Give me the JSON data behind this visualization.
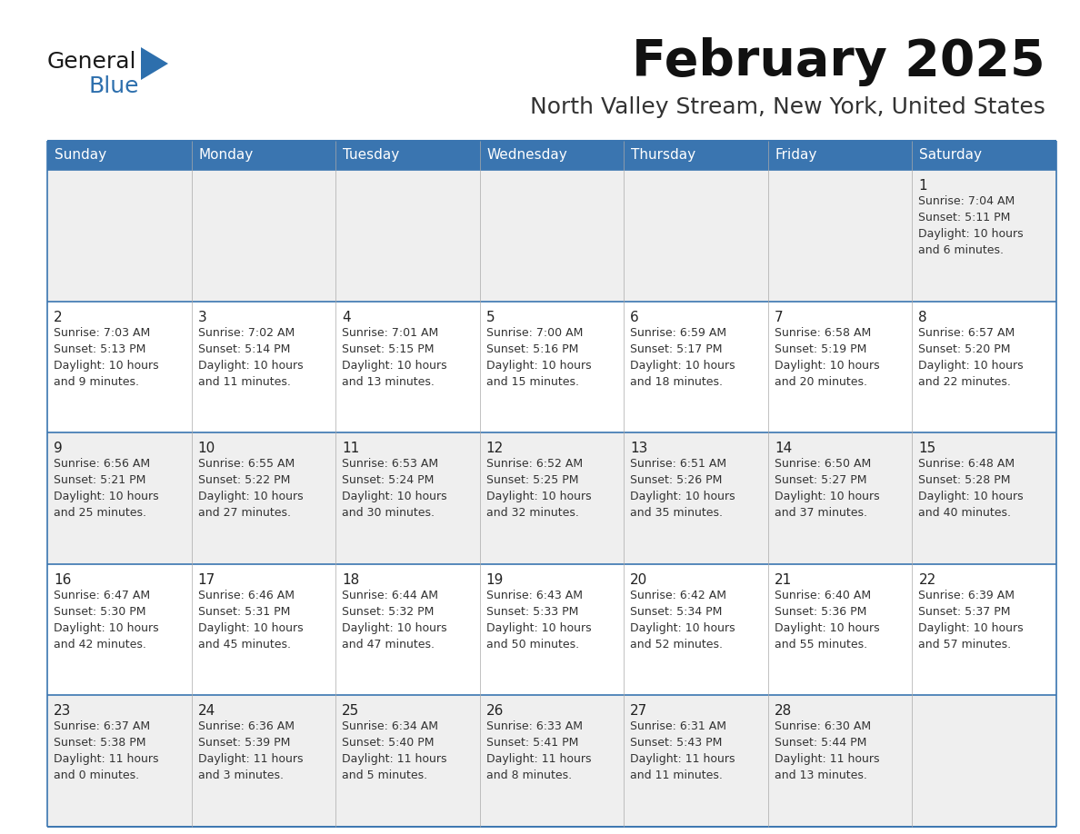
{
  "title": "February 2025",
  "subtitle": "North Valley Stream, New York, United States",
  "header_color": "#3a75b0",
  "header_text_color": "#ffffff",
  "cell_bg_even": "#efefef",
  "cell_bg_odd": "#ffffff",
  "border_color": "#3a75b0",
  "day_headers": [
    "Sunday",
    "Monday",
    "Tuesday",
    "Wednesday",
    "Thursday",
    "Friday",
    "Saturday"
  ],
  "title_color": "#111111",
  "subtitle_color": "#333333",
  "logo_general_color": "#1a1a1a",
  "logo_blue_color": "#2d6fad",
  "text_color": "#333333",
  "weeks": [
    [
      {
        "day": null,
        "sunrise": null,
        "sunset": null,
        "daylight": null
      },
      {
        "day": null,
        "sunrise": null,
        "sunset": null,
        "daylight": null
      },
      {
        "day": null,
        "sunrise": null,
        "sunset": null,
        "daylight": null
      },
      {
        "day": null,
        "sunrise": null,
        "sunset": null,
        "daylight": null
      },
      {
        "day": null,
        "sunrise": null,
        "sunset": null,
        "daylight": null
      },
      {
        "day": null,
        "sunrise": null,
        "sunset": null,
        "daylight": null
      },
      {
        "day": 1,
        "sunrise": "7:04 AM",
        "sunset": "5:11 PM",
        "daylight": "10 hours\nand 6 minutes."
      }
    ],
    [
      {
        "day": 2,
        "sunrise": "7:03 AM",
        "sunset": "5:13 PM",
        "daylight": "10 hours\nand 9 minutes."
      },
      {
        "day": 3,
        "sunrise": "7:02 AM",
        "sunset": "5:14 PM",
        "daylight": "10 hours\nand 11 minutes."
      },
      {
        "day": 4,
        "sunrise": "7:01 AM",
        "sunset": "5:15 PM",
        "daylight": "10 hours\nand 13 minutes."
      },
      {
        "day": 5,
        "sunrise": "7:00 AM",
        "sunset": "5:16 PM",
        "daylight": "10 hours\nand 15 minutes."
      },
      {
        "day": 6,
        "sunrise": "6:59 AM",
        "sunset": "5:17 PM",
        "daylight": "10 hours\nand 18 minutes."
      },
      {
        "day": 7,
        "sunrise": "6:58 AM",
        "sunset": "5:19 PM",
        "daylight": "10 hours\nand 20 minutes."
      },
      {
        "day": 8,
        "sunrise": "6:57 AM",
        "sunset": "5:20 PM",
        "daylight": "10 hours\nand 22 minutes."
      }
    ],
    [
      {
        "day": 9,
        "sunrise": "6:56 AM",
        "sunset": "5:21 PM",
        "daylight": "10 hours\nand 25 minutes."
      },
      {
        "day": 10,
        "sunrise": "6:55 AM",
        "sunset": "5:22 PM",
        "daylight": "10 hours\nand 27 minutes."
      },
      {
        "day": 11,
        "sunrise": "6:53 AM",
        "sunset": "5:24 PM",
        "daylight": "10 hours\nand 30 minutes."
      },
      {
        "day": 12,
        "sunrise": "6:52 AM",
        "sunset": "5:25 PM",
        "daylight": "10 hours\nand 32 minutes."
      },
      {
        "day": 13,
        "sunrise": "6:51 AM",
        "sunset": "5:26 PM",
        "daylight": "10 hours\nand 35 minutes."
      },
      {
        "day": 14,
        "sunrise": "6:50 AM",
        "sunset": "5:27 PM",
        "daylight": "10 hours\nand 37 minutes."
      },
      {
        "day": 15,
        "sunrise": "6:48 AM",
        "sunset": "5:28 PM",
        "daylight": "10 hours\nand 40 minutes."
      }
    ],
    [
      {
        "day": 16,
        "sunrise": "6:47 AM",
        "sunset": "5:30 PM",
        "daylight": "10 hours\nand 42 minutes."
      },
      {
        "day": 17,
        "sunrise": "6:46 AM",
        "sunset": "5:31 PM",
        "daylight": "10 hours\nand 45 minutes."
      },
      {
        "day": 18,
        "sunrise": "6:44 AM",
        "sunset": "5:32 PM",
        "daylight": "10 hours\nand 47 minutes."
      },
      {
        "day": 19,
        "sunrise": "6:43 AM",
        "sunset": "5:33 PM",
        "daylight": "10 hours\nand 50 minutes."
      },
      {
        "day": 20,
        "sunrise": "6:42 AM",
        "sunset": "5:34 PM",
        "daylight": "10 hours\nand 52 minutes."
      },
      {
        "day": 21,
        "sunrise": "6:40 AM",
        "sunset": "5:36 PM",
        "daylight": "10 hours\nand 55 minutes."
      },
      {
        "day": 22,
        "sunrise": "6:39 AM",
        "sunset": "5:37 PM",
        "daylight": "10 hours\nand 57 minutes."
      }
    ],
    [
      {
        "day": 23,
        "sunrise": "6:37 AM",
        "sunset": "5:38 PM",
        "daylight": "11 hours\nand 0 minutes."
      },
      {
        "day": 24,
        "sunrise": "6:36 AM",
        "sunset": "5:39 PM",
        "daylight": "11 hours\nand 3 minutes."
      },
      {
        "day": 25,
        "sunrise": "6:34 AM",
        "sunset": "5:40 PM",
        "daylight": "11 hours\nand 5 minutes."
      },
      {
        "day": 26,
        "sunrise": "6:33 AM",
        "sunset": "5:41 PM",
        "daylight": "11 hours\nand 8 minutes."
      },
      {
        "day": 27,
        "sunrise": "6:31 AM",
        "sunset": "5:43 PM",
        "daylight": "11 hours\nand 11 minutes."
      },
      {
        "day": 28,
        "sunrise": "6:30 AM",
        "sunset": "5:44 PM",
        "daylight": "11 hours\nand 13 minutes."
      },
      {
        "day": null,
        "sunrise": null,
        "sunset": null,
        "daylight": null
      }
    ]
  ]
}
